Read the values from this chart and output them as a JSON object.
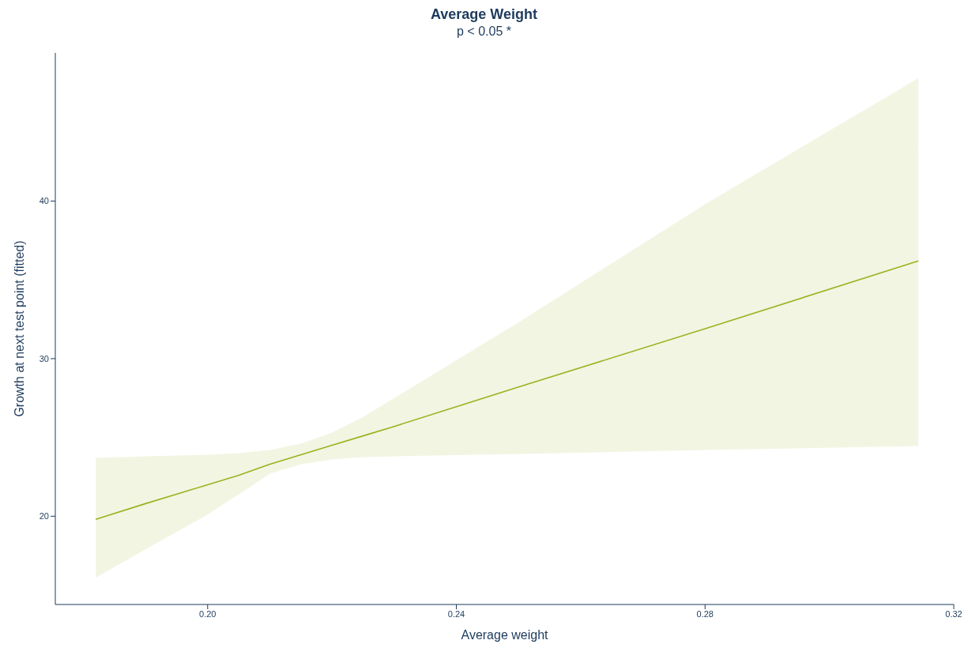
{
  "chart_data": {
    "type": "line",
    "title": "Average Weight",
    "subtitle": "p < 0.05 *",
    "xlabel": "Average weight",
    "ylabel": "Growth at next test point (fitted)",
    "x": [
      0.182,
      0.19,
      0.2,
      0.205,
      0.21,
      0.215,
      0.22,
      0.225,
      0.23,
      0.25,
      0.28,
      0.3143
    ],
    "series": [
      {
        "color": "#9ab21f",
        "values": [
          19.8,
          20.8,
          22.0,
          22.6,
          23.3,
          23.9,
          24.5,
          25.1,
          25.7,
          28.2,
          31.9,
          36.2
        ],
        "lower": [
          16.1,
          17.9,
          20.1,
          21.4,
          22.7,
          23.3,
          23.6,
          23.75,
          23.8,
          23.95,
          24.2,
          24.45
        ],
        "upper": [
          23.7,
          23.8,
          23.9,
          24.0,
          24.2,
          24.6,
          25.3,
          26.3,
          27.5,
          32.3,
          39.8,
          47.8
        ]
      }
    ],
    "xlim": [
      0.1755,
      0.32
    ],
    "xticks": [
      {
        "value": 0.2,
        "label": "0.20"
      },
      {
        "value": 0.24,
        "label": "0.24"
      },
      {
        "value": 0.28,
        "label": "0.28"
      },
      {
        "value": 0.32,
        "label": "0.32"
      }
    ],
    "ylim": [
      14.4,
      49.4
    ],
    "yticks": [
      20,
      30,
      40
    ],
    "grid": false,
    "legend": false
  }
}
